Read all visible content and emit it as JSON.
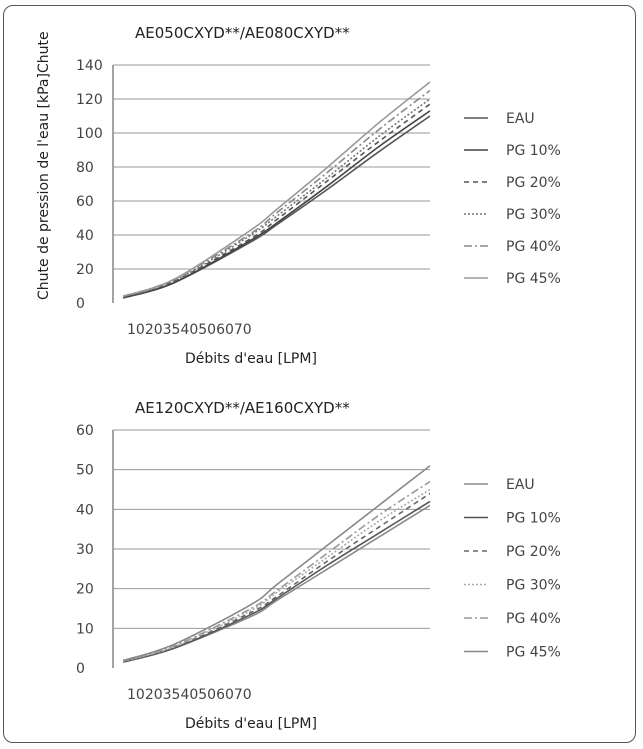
{
  "chart_data": [
    {
      "type": "line",
      "title": "AE050CXYD**/AE080CXYD**",
      "ylabel": "Chute de pression de l'eau [kPa]Chute",
      "xlabel": "Débits d'eau [LPM]",
      "x_tick_text": "10203540506070",
      "y_ticks": [
        "140",
        "120",
        "100",
        "80",
        "60",
        "40",
        "20",
        "0"
      ],
      "ylim": [
        0,
        140
      ],
      "x": [
        10,
        20,
        35,
        40,
        50,
        60,
        70
      ],
      "series": [
        {
          "name": "EAU",
          "color": "#555555",
          "dash": "",
          "values": [
            3,
            12,
            36,
            46,
            67,
            89,
            110
          ]
        },
        {
          "name": "PG 10%",
          "color": "#444444",
          "dash": "",
          "values": [
            3,
            12,
            37,
            47,
            69,
            92,
            113
          ]
        },
        {
          "name": "PG 20%",
          "color": "#555555",
          "dash": "5,4",
          "values": [
            3,
            13,
            38,
            49,
            72,
            95,
            117
          ]
        },
        {
          "name": "PG 30%",
          "color": "#777777",
          "dash": "2,2",
          "values": [
            4,
            13,
            40,
            51,
            74,
            98,
            120
          ]
        },
        {
          "name": "PG 40%",
          "color": "#888888",
          "dash": "8,3,2,3",
          "values": [
            4,
            14,
            41,
            53,
            77,
            102,
            125
          ]
        },
        {
          "name": "PG 45%",
          "color": "#9a9a9a",
          "dash": "",
          "values": [
            4,
            14,
            43,
            55,
            80,
            106,
            130
          ]
        }
      ]
    },
    {
      "type": "line",
      "title": "AE120CXYD**/AE160CXYD**",
      "xlabel": "Débits d'eau [LPM]",
      "x_tick_text": "10203540506070",
      "y_ticks": [
        "60",
        "50",
        "40",
        "30",
        "20",
        "10",
        "0"
      ],
      "ylim": [
        0,
        60
      ],
      "x": [
        10,
        20,
        35,
        40,
        50,
        60,
        70
      ],
      "series": [
        {
          "name": "EAU",
          "color": "#8a8a8a",
          "dash": "",
          "values": [
            1.5,
            5,
            13,
            17,
            25,
            33,
            41
          ]
        },
        {
          "name": "PG 10%",
          "color": "#555555",
          "dash": "",
          "values": [
            1.5,
            5,
            13.5,
            17.5,
            26,
            34,
            42
          ]
        },
        {
          "name": "PG 20%",
          "color": "#666666",
          "dash": "5,4",
          "values": [
            1.6,
            5.2,
            14,
            18,
            27,
            35.5,
            44
          ]
        },
        {
          "name": "PG 30%",
          "color": "#aaaaaa",
          "dash": "2,2",
          "values": [
            1.7,
            5.4,
            14.5,
            19,
            28,
            37,
            45
          ]
        },
        {
          "name": "PG 40%",
          "color": "#999999",
          "dash": "8,3,2,3",
          "values": [
            1.8,
            5.6,
            15,
            19.5,
            29,
            38.5,
            47
          ]
        },
        {
          "name": "PG 45%",
          "color": "#888888",
          "dash": "",
          "values": [
            1.9,
            6,
            16,
            21,
            31,
            41,
            51
          ]
        }
      ]
    }
  ]
}
